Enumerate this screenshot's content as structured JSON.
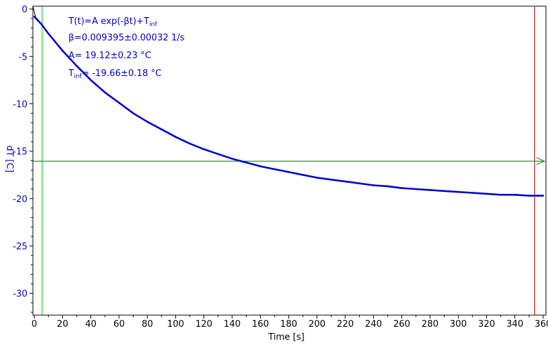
{
  "chart_data": {
    "type": "line",
    "xlabel": "Time [s]",
    "ylabel": "dT [C]",
    "xlim": [
      -1,
      362
    ],
    "ylim": [
      -32.3,
      0.3
    ],
    "x_ticks": [
      0,
      20,
      40,
      60,
      80,
      100,
      120,
      140,
      160,
      180,
      200,
      220,
      240,
      260,
      280,
      300,
      320,
      340,
      360
    ],
    "y_ticks": [
      0,
      -5,
      -10,
      -15,
      -20,
      -25,
      -30
    ],
    "grid": false,
    "series": [
      {
        "color": "#0000cc",
        "x": [
          0,
          5,
          10,
          20,
          30,
          40,
          50,
          60,
          70,
          80,
          90,
          100,
          110,
          120,
          130,
          140,
          150,
          160,
          170,
          180,
          190,
          200,
          210,
          220,
          230,
          240,
          250,
          260,
          270,
          280,
          290,
          300,
          310,
          320,
          330,
          340,
          350,
          360
        ],
        "y": [
          -0.8,
          -1.6,
          -2.6,
          -4.4,
          -6.0,
          -7.5,
          -8.8,
          -9.9,
          -11.0,
          -11.9,
          -12.7,
          -13.5,
          -14.2,
          -14.8,
          -15.3,
          -15.8,
          -16.2,
          -16.6,
          -16.9,
          -17.2,
          -17.5,
          -17.8,
          -18.0,
          -18.2,
          -18.4,
          -18.6,
          -18.7,
          -18.9,
          -19.0,
          -19.1,
          -19.2,
          -19.3,
          -19.4,
          -19.5,
          -19.6,
          -19.6,
          -19.7,
          -19.7
        ]
      }
    ],
    "cursor_left_x": 5.5,
    "cursor_left_color": "#00cc00",
    "cursor_right_x": 354,
    "cursor_right_color": "#cc0000",
    "hline_y": -16.05,
    "hline_color": "#007700"
  },
  "annotations": {
    "formula_main": "T(t)=A exp(-βt)+T",
    "formula_sub": "inf",
    "beta": "β=0.009395±0.00032 1/s",
    "a_value": "A= 19.12±0.23 °C",
    "tinf_prefix": "T",
    "tinf_sub": "inf",
    "tinf_value": "= -19.66±0.18 °C"
  }
}
